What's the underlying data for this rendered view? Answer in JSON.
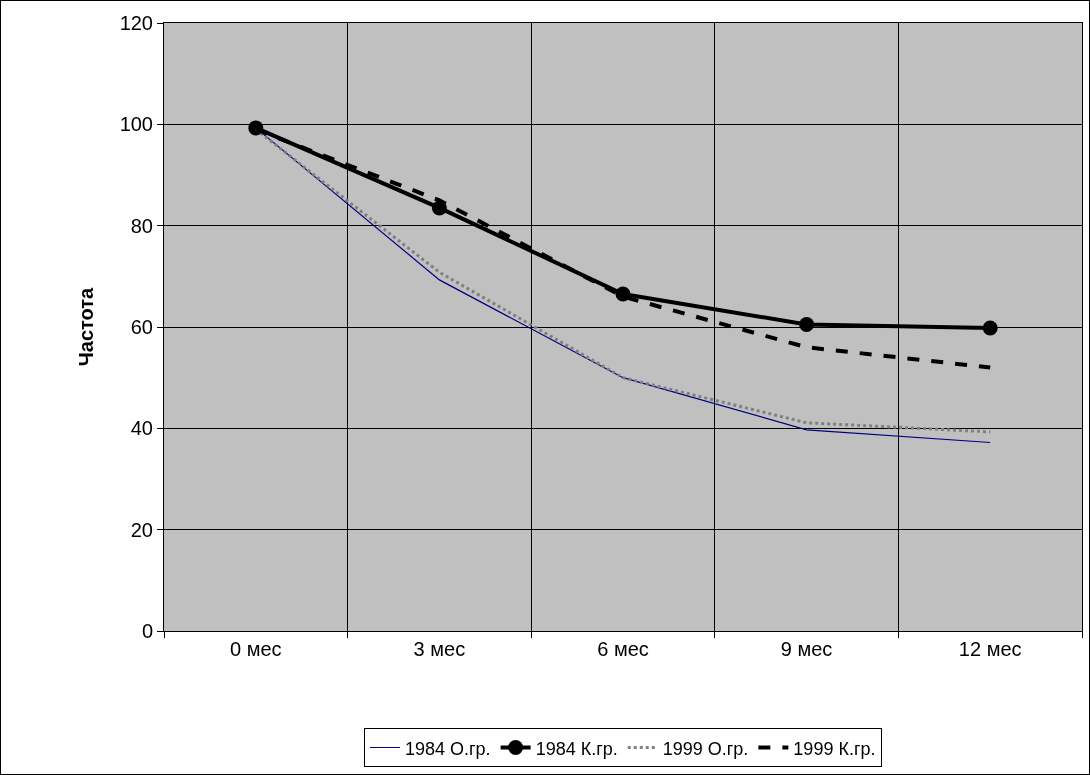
{
  "chart_data": {
    "type": "line",
    "ylabel": "Частота",
    "categories": [
      "0 мес",
      "3 мес",
      "6 мес",
      "9 мес",
      "12 мес"
    ],
    "series": [
      {
        "name": "1984 О.гр.",
        "color": "#000080",
        "values": [
          99.3,
          69.3,
          50,
          39.7,
          37.2
        ],
        "marker": "none",
        "line_style": "solid"
      },
      {
        "name": "1984 К.гр.",
        "color": "#000000",
        "values": [
          99.3,
          83.5,
          66.5,
          60.5,
          59.8
        ],
        "marker": "circle",
        "line_style": "solid"
      },
      {
        "name": "1999 О.гр.",
        "color": "#808080",
        "values": [
          99,
          70.8,
          50,
          41.1,
          39.3
        ],
        "marker": "none",
        "line_style": "dotted"
      },
      {
        "name": "1999 К.гр.",
        "color": "#000000",
        "values": [
          99,
          85,
          66,
          56,
          52
        ],
        "marker": "none",
        "line_style": "dashed"
      }
    ],
    "ylim": [
      0,
      120
    ],
    "yticks": [
      0,
      20,
      40,
      60,
      80,
      100,
      120
    ],
    "grid": true,
    "legend": "bottom"
  }
}
